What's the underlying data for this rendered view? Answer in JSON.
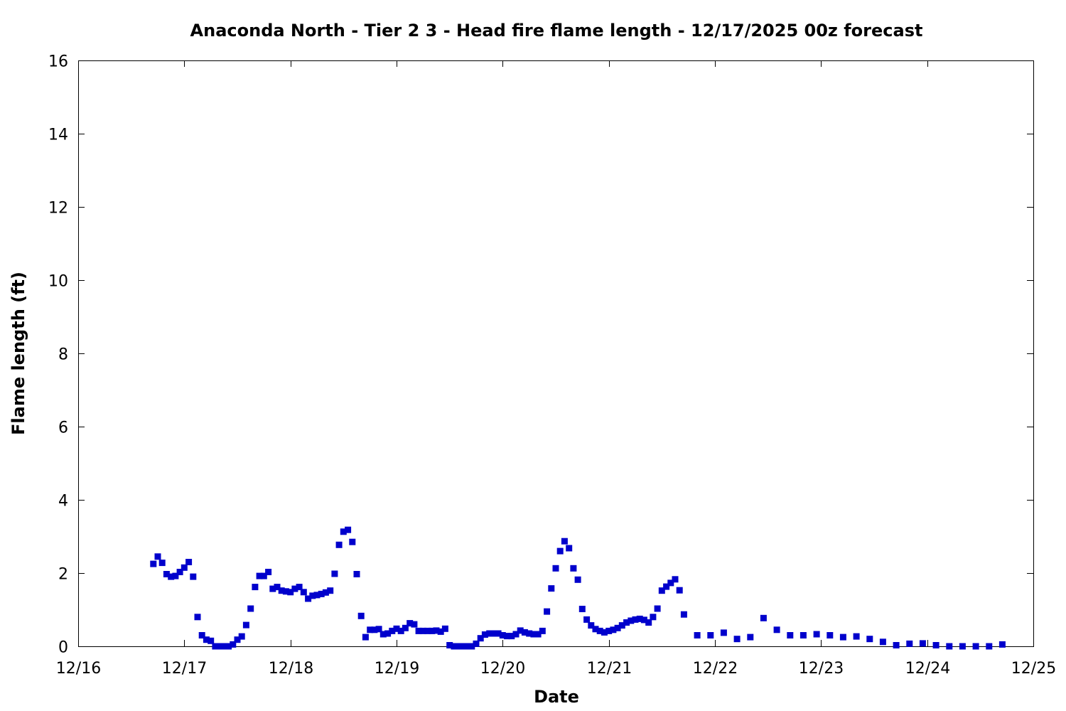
{
  "chart_data": {
    "type": "scatter",
    "title": "Anaconda North - Tier 2 3 - Head fire flame length - 12/17/2025 00z forecast",
    "xlabel": "Date",
    "ylabel": "Flame length (ft)",
    "xlim": [
      "12/16",
      "12/25"
    ],
    "ylim": [
      0,
      16
    ],
    "x_ticks": [
      "12/16",
      "12/17",
      "12/18",
      "12/19",
      "12/20",
      "12/21",
      "12/22",
      "12/23",
      "12/24",
      "12/25"
    ],
    "y_ticks": [
      "0",
      "2",
      "4",
      "6",
      "8",
      "10",
      "12",
      "14",
      "16"
    ],
    "grid": false,
    "marker": "square",
    "color": "#0000cc",
    "x": [
      "12/16 17:00",
      "12/16 18:00",
      "12/16 19:00",
      "12/16 20:00",
      "12/16 21:00",
      "12/16 22:00",
      "12/16 23:00",
      "12/17 00:00",
      "12/17 01:00",
      "12/17 02:00",
      "12/17 03:00",
      "12/17 04:00",
      "12/17 05:00",
      "12/17 06:00",
      "12/17 07:00",
      "12/17 08:00",
      "12/17 09:00",
      "12/17 10:00",
      "12/17 11:00",
      "12/17 12:00",
      "12/17 13:00",
      "12/17 14:00",
      "12/17 15:00",
      "12/17 16:00",
      "12/17 17:00",
      "12/17 18:00",
      "12/17 19:00",
      "12/17 20:00",
      "12/17 21:00",
      "12/17 22:00",
      "12/17 23:00",
      "12/18 00:00",
      "12/18 01:00",
      "12/18 02:00",
      "12/18 03:00",
      "12/18 04:00",
      "12/18 05:00",
      "12/18 06:00",
      "12/18 07:00",
      "12/18 08:00",
      "12/18 09:00",
      "12/18 10:00",
      "12/18 11:00",
      "12/18 12:00",
      "12/18 13:00",
      "12/18 14:00",
      "12/18 15:00",
      "12/18 16:00",
      "12/18 17:00",
      "12/18 18:00",
      "12/18 19:00",
      "12/18 20:00",
      "12/18 21:00",
      "12/18 22:00",
      "12/18 23:00",
      "12/19 00:00",
      "12/19 01:00",
      "12/19 02:00",
      "12/19 03:00",
      "12/19 04:00",
      "12/19 05:00",
      "12/19 06:00",
      "12/19 07:00",
      "12/19 08:00",
      "12/19 09:00",
      "12/19 10:00",
      "12/19 11:00",
      "12/19 12:00",
      "12/19 13:00",
      "12/19 14:00",
      "12/19 15:00",
      "12/19 16:00",
      "12/19 17:00",
      "12/19 18:00",
      "12/19 19:00",
      "12/19 20:00",
      "12/19 21:00",
      "12/19 22:00",
      "12/19 23:00",
      "12/20 00:00",
      "12/20 01:00",
      "12/20 02:00",
      "12/20 03:00",
      "12/20 04:00",
      "12/20 05:00",
      "12/20 06:00",
      "12/20 07:00",
      "12/20 08:00",
      "12/20 09:00",
      "12/20 10:00",
      "12/20 11:00",
      "12/20 12:00",
      "12/20 13:00",
      "12/20 14:00",
      "12/20 15:00",
      "12/20 16:00",
      "12/20 17:00",
      "12/20 18:00",
      "12/20 19:00",
      "12/20 20:00",
      "12/20 21:00",
      "12/20 22:00",
      "12/20 23:00",
      "12/21 00:00",
      "12/21 01:00",
      "12/21 02:00",
      "12/21 03:00",
      "12/21 04:00",
      "12/21 05:00",
      "12/21 06:00",
      "12/21 07:00",
      "12/21 08:00",
      "12/21 09:00",
      "12/21 10:00",
      "12/21 11:00",
      "12/21 12:00",
      "12/21 13:00",
      "12/21 14:00",
      "12/21 15:00",
      "12/21 16:00",
      "12/21 17:00",
      "12/21 20:00",
      "12/21 23:00",
      "12/22 02:00",
      "12/22 05:00",
      "12/22 08:00",
      "12/22 11:00",
      "12/22 14:00",
      "12/22 17:00",
      "12/22 20:00",
      "12/22 23:00",
      "12/23 02:00",
      "12/23 05:00",
      "12/23 08:00",
      "12/23 11:00",
      "12/23 14:00",
      "12/23 17:00",
      "12/23 20:00",
      "12/23 23:00",
      "12/24 02:00",
      "12/24 05:00",
      "12/24 08:00",
      "12/24 11:00",
      "12/24 14:00",
      "12/24 17:00"
    ],
    "y": [
      2.25,
      2.45,
      2.28,
      1.97,
      1.9,
      1.92,
      2.03,
      2.15,
      2.3,
      1.9,
      0.8,
      0.3,
      0.18,
      0.15,
      0.0,
      0.0,
      0.0,
      0.0,
      0.05,
      0.18,
      0.27,
      0.58,
      1.03,
      1.62,
      1.92,
      1.92,
      2.03,
      1.57,
      1.62,
      1.52,
      1.5,
      1.48,
      1.57,
      1.62,
      1.48,
      1.3,
      1.38,
      1.4,
      1.43,
      1.47,
      1.52,
      1.98,
      2.77,
      3.13,
      3.18,
      2.85,
      1.97,
      0.83,
      0.25,
      0.45,
      0.45,
      0.47,
      0.33,
      0.35,
      0.42,
      0.48,
      0.42,
      0.5,
      0.63,
      0.6,
      0.42,
      0.42,
      0.42,
      0.42,
      0.43,
      0.4,
      0.48,
      0.03,
      0.0,
      0.0,
      0.0,
      0.0,
      0.0,
      0.07,
      0.22,
      0.32,
      0.35,
      0.35,
      0.35,
      0.3,
      0.28,
      0.28,
      0.33,
      0.43,
      0.38,
      0.35,
      0.33,
      0.33,
      0.42,
      0.95,
      1.58,
      2.13,
      2.6,
      2.87,
      2.68,
      2.13,
      1.82,
      1.02,
      0.73,
      0.57,
      0.47,
      0.42,
      0.38,
      0.42,
      0.45,
      0.5,
      0.57,
      0.65,
      0.7,
      0.73,
      0.75,
      0.72,
      0.65,
      0.8,
      1.03,
      1.52,
      1.63,
      1.73,
      1.83,
      1.53,
      0.87,
      0.3,
      0.3,
      0.37,
      0.2,
      0.25,
      0.77,
      0.45,
      0.3,
      0.3,
      0.33,
      0.3,
      0.25,
      0.27,
      0.2,
      0.12,
      0.03,
      0.07,
      0.08,
      0.03,
      0.0,
      0.0,
      0.0,
      0.0,
      0.05
    ]
  }
}
